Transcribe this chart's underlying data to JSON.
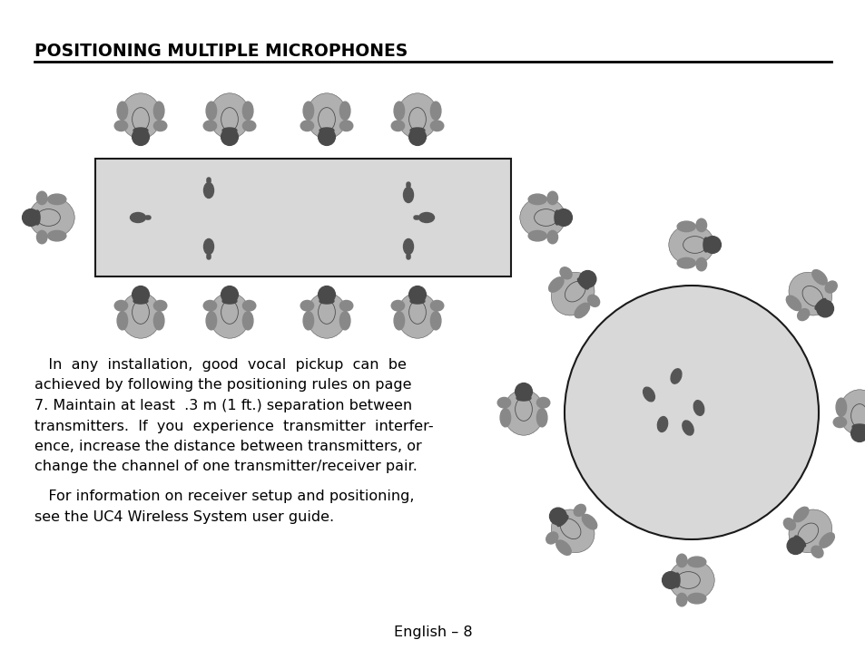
{
  "title": "POSITIONING MULTIPLE MICROPHONES",
  "p1_line1": "   In  any  installation,  good  vocal  pickup  can  be",
  "p1_line2": "achieved by following the positioning rules on page",
  "p1_line3": "7. Maintain at least  .3 m (1 ft.) separation between",
  "p1_line4": "transmitters.  If  you  experience  transmitter  interfer-",
  "p1_line5": "ence, increase the distance between transmitters, or",
  "p1_line6": "change the channel of one transmitter/receiver pair.",
  "p2_line1": "   For information on receiver setup and positioning,",
  "p2_line2": "see the UC4 Wireless System user guide.",
  "footer": "English – 8",
  "bg_color": "#ffffff",
  "table_fill": "#d8d8d8",
  "table_edge": "#1a1a1a",
  "person_light": "#b0b0b0",
  "person_mid": "#888888",
  "person_dark": "#4a4a4a",
  "mic_color": "#555555",
  "round_table_fill": "#d8d8d8",
  "round_table_edge": "#1a1a1a"
}
